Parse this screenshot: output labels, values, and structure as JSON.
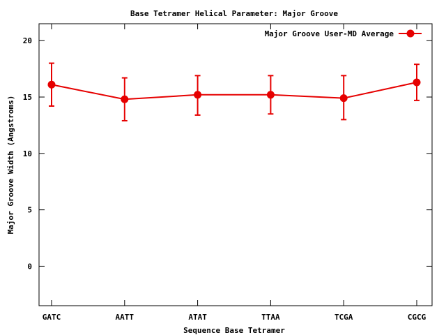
{
  "chart_data": {
    "type": "line",
    "title": "Base Tetramer Helical Parameter: Major Groove",
    "xlabel": "Sequence Base Tetramer",
    "ylabel": "Major Groove Width (Angstroms)",
    "categories": [
      "GATC",
      "AATT",
      "ATAT",
      "TTAA",
      "TCGA",
      "CGCG"
    ],
    "ylim": [
      -3.5,
      21.5
    ],
    "yticks": [
      0,
      5,
      10,
      15,
      20
    ],
    "grid": false,
    "legend_position": "top-right",
    "series": [
      {
        "name": "Major Groove User-MD Average",
        "color": "#e60000",
        "values": [
          16.1,
          14.8,
          15.2,
          15.2,
          14.9,
          16.3
        ],
        "err_low": [
          14.2,
          12.9,
          13.4,
          13.5,
          13.0,
          14.7
        ],
        "err_high": [
          18.0,
          16.7,
          16.9,
          16.9,
          16.9,
          17.9
        ]
      }
    ]
  }
}
